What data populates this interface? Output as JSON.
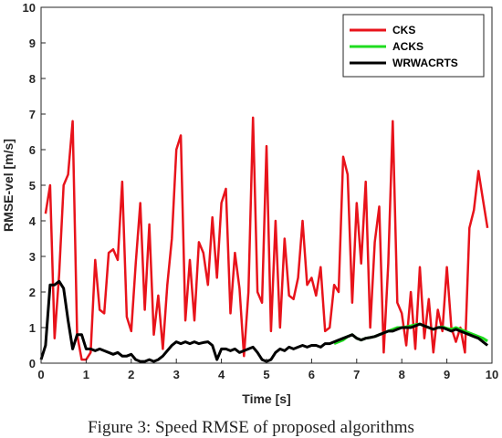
{
  "caption": "Figure 3: Speed RMSE of proposed algorithms",
  "chart_data": {
    "type": "line",
    "xlabel": "Time [s]",
    "ylabel": "RMSE-vel [m/s]",
    "xlim": [
      0,
      10
    ],
    "ylim": [
      0,
      10
    ],
    "xticks": [
      0,
      1,
      2,
      3,
      4,
      5,
      6,
      7,
      8,
      9,
      10
    ],
    "yticks": [
      0,
      1,
      2,
      3,
      4,
      5,
      6,
      7,
      8,
      9,
      10
    ],
    "grid": false,
    "legend_position": "top-right",
    "series": [
      {
        "name": "CKS",
        "color": "#e8131b",
        "x": [
          0.1,
          0.2,
          0.3,
          0.4,
          0.5,
          0.6,
          0.7,
          0.8,
          0.9,
          1.0,
          1.1,
          1.2,
          1.3,
          1.4,
          1.5,
          1.6,
          1.7,
          1.8,
          1.9,
          2.0,
          2.1,
          2.2,
          2.3,
          2.4,
          2.5,
          2.6,
          2.7,
          2.8,
          2.9,
          3.0,
          3.1,
          3.2,
          3.3,
          3.4,
          3.5,
          3.6,
          3.7,
          3.8,
          3.9,
          4.0,
          4.1,
          4.2,
          4.3,
          4.4,
          4.5,
          4.6,
          4.7,
          4.8,
          4.9,
          5.0,
          5.1,
          5.2,
          5.3,
          5.4,
          5.5,
          5.6,
          5.7,
          5.8,
          5.9,
          6.0,
          6.1,
          6.2,
          6.3,
          6.4,
          6.5,
          6.6,
          6.7,
          6.8,
          6.9,
          7.0,
          7.1,
          7.2,
          7.3,
          7.4,
          7.5,
          7.6,
          7.7,
          7.8,
          7.9,
          8.0,
          8.1,
          8.2,
          8.3,
          8.4,
          8.5,
          8.6,
          8.7,
          8.8,
          8.9,
          9.0,
          9.1,
          9.2,
          9.3,
          9.4,
          9.5,
          9.6,
          9.7,
          9.8,
          9.9
        ],
        "values": [
          4.2,
          5.0,
          0.7,
          2.5,
          5.0,
          5.3,
          6.8,
          0.8,
          0.1,
          0.1,
          0.3,
          2.9,
          1.5,
          1.4,
          3.1,
          3.2,
          2.9,
          5.1,
          1.3,
          0.9,
          2.8,
          4.5,
          1.5,
          3.9,
          0.8,
          1.9,
          0.4,
          2.2,
          3.5,
          6.0,
          6.4,
          1.2,
          2.9,
          1.2,
          3.4,
          3.1,
          2.2,
          4.1,
          2.4,
          4.5,
          4.9,
          1.4,
          3.1,
          2.1,
          0.2,
          2.0,
          6.9,
          2.0,
          1.7,
          6.1,
          0.9,
          4.0,
          1.0,
          3.5,
          1.9,
          1.8,
          2.4,
          4.0,
          2.2,
          2.4,
          1.9,
          2.7,
          0.9,
          1.0,
          2.2,
          2.0,
          5.8,
          5.3,
          1.7,
          4.5,
          2.8,
          5.1,
          1.0,
          3.4,
          4.4,
          0.3,
          2.8,
          6.8,
          1.7,
          1.4,
          0.5,
          2.0,
          0.4,
          2.7,
          0.7,
          1.8,
          0.3,
          1.5,
          0.9,
          2.7,
          1.0,
          0.6,
          1.0,
          0.3,
          3.8,
          4.3,
          5.4,
          4.6,
          3.8
        ]
      },
      {
        "name": "ACKS",
        "color": "#1fdc1f",
        "x": [
          6.5,
          6.6,
          6.7,
          6.8,
          6.9,
          7.0,
          7.1,
          7.2,
          7.3,
          7.4,
          7.5,
          7.6,
          7.7,
          7.8,
          7.9,
          8.0,
          8.1,
          8.2,
          8.3,
          8.4,
          8.5,
          8.6,
          8.7,
          8.8,
          8.9,
          9.0,
          9.1,
          9.2,
          9.3,
          9.4,
          9.5,
          9.6,
          9.7,
          9.8,
          9.9
        ],
        "values": [
          0.55,
          0.6,
          0.65,
          0.75,
          0.8,
          0.7,
          0.65,
          0.7,
          0.72,
          0.75,
          0.8,
          0.85,
          0.9,
          0.95,
          1.0,
          1.0,
          1.02,
          1.05,
          1.08,
          1.1,
          1.05,
          1.0,
          0.95,
          1.0,
          1.02,
          0.98,
          0.95,
          1.0,
          0.95,
          0.9,
          0.85,
          0.8,
          0.75,
          0.7,
          0.62
        ]
      },
      {
        "name": "WRWACRTS",
        "color": "#000000",
        "x": [
          0.0,
          0.1,
          0.2,
          0.3,
          0.4,
          0.5,
          0.6,
          0.7,
          0.8,
          0.9,
          1.0,
          1.1,
          1.2,
          1.3,
          1.4,
          1.5,
          1.6,
          1.7,
          1.8,
          1.9,
          2.0,
          2.1,
          2.2,
          2.3,
          2.4,
          2.5,
          2.6,
          2.7,
          2.8,
          2.9,
          3.0,
          3.1,
          3.2,
          3.3,
          3.4,
          3.5,
          3.6,
          3.7,
          3.8,
          3.9,
          4.0,
          4.1,
          4.2,
          4.3,
          4.4,
          4.5,
          4.6,
          4.7,
          4.8,
          4.9,
          5.0,
          5.1,
          5.2,
          5.3,
          5.4,
          5.5,
          5.6,
          5.7,
          5.8,
          5.9,
          6.0,
          6.1,
          6.2,
          6.3,
          6.4,
          6.5,
          6.6,
          6.7,
          6.8,
          6.9,
          7.0,
          7.1,
          7.2,
          7.3,
          7.4,
          7.5,
          7.6,
          7.7,
          7.8,
          7.9,
          8.0,
          8.1,
          8.2,
          8.3,
          8.4,
          8.5,
          8.6,
          8.7,
          8.8,
          8.9,
          9.0,
          9.1,
          9.2,
          9.3,
          9.4,
          9.5,
          9.6,
          9.7,
          9.8,
          9.9
        ],
        "values": [
          0.1,
          0.5,
          2.2,
          2.2,
          2.3,
          2.1,
          1.2,
          0.4,
          0.8,
          0.8,
          0.4,
          0.4,
          0.35,
          0.4,
          0.35,
          0.3,
          0.25,
          0.3,
          0.2,
          0.2,
          0.25,
          0.1,
          0.05,
          0.05,
          0.1,
          0.05,
          0.1,
          0.2,
          0.35,
          0.5,
          0.6,
          0.55,
          0.6,
          0.55,
          0.6,
          0.55,
          0.58,
          0.6,
          0.5,
          0.1,
          0.4,
          0.4,
          0.35,
          0.4,
          0.3,
          0.35,
          0.4,
          0.45,
          0.3,
          0.1,
          0.05,
          0.1,
          0.3,
          0.4,
          0.35,
          0.45,
          0.4,
          0.45,
          0.5,
          0.45,
          0.5,
          0.5,
          0.45,
          0.55,
          0.55,
          0.6,
          0.65,
          0.7,
          0.75,
          0.8,
          0.7,
          0.65,
          0.7,
          0.72,
          0.75,
          0.8,
          0.85,
          0.9,
          0.9,
          0.95,
          1.0,
          1.0,
          1.0,
          1.05,
          1.1,
          1.05,
          1.0,
          0.95,
          1.0,
          1.0,
          0.95,
          0.9,
          0.95,
          0.9,
          0.85,
          0.8,
          0.75,
          0.7,
          0.6,
          0.5
        ]
      }
    ]
  }
}
